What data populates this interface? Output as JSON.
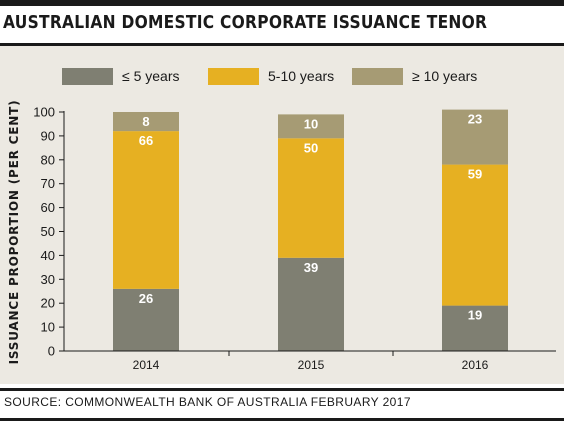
{
  "title": "AUSTRALIAN DOMESTIC CORPORATE ISSUANCE TENOR",
  "source": "SOURCE: COMMONWEALTH BANK OF AUSTRALIA FEBRUARY 2017",
  "colors": {
    "short": "#7f7f72",
    "mid": "#e6b022",
    "long": "#a69b74",
    "panel": "#ece9e2",
    "rule": "#1a1a1a"
  },
  "chart_data": {
    "type": "bar",
    "stacked": true,
    "title": "AUSTRALIAN DOMESTIC CORPORATE ISSUANCE TENOR",
    "xlabel": "",
    "ylabel": "ISSUANCE PROPORTION (PER CENT)",
    "ylim": [
      0,
      100
    ],
    "yticks": [
      0,
      10,
      20,
      30,
      40,
      50,
      60,
      70,
      80,
      90,
      100
    ],
    "categories": [
      "2014",
      "2015",
      "2016"
    ],
    "legend_position": "top",
    "grid": false,
    "series": [
      {
        "name": "≤ 5 years",
        "color": "#7f7f72",
        "values": [
          26,
          39,
          19
        ]
      },
      {
        "name": "5-10 years",
        "color": "#e6b022",
        "values": [
          66,
          50,
          59
        ]
      },
      {
        "name": "≥ 10 years",
        "color": "#a69b74",
        "values": [
          8,
          10,
          23
        ]
      }
    ]
  }
}
